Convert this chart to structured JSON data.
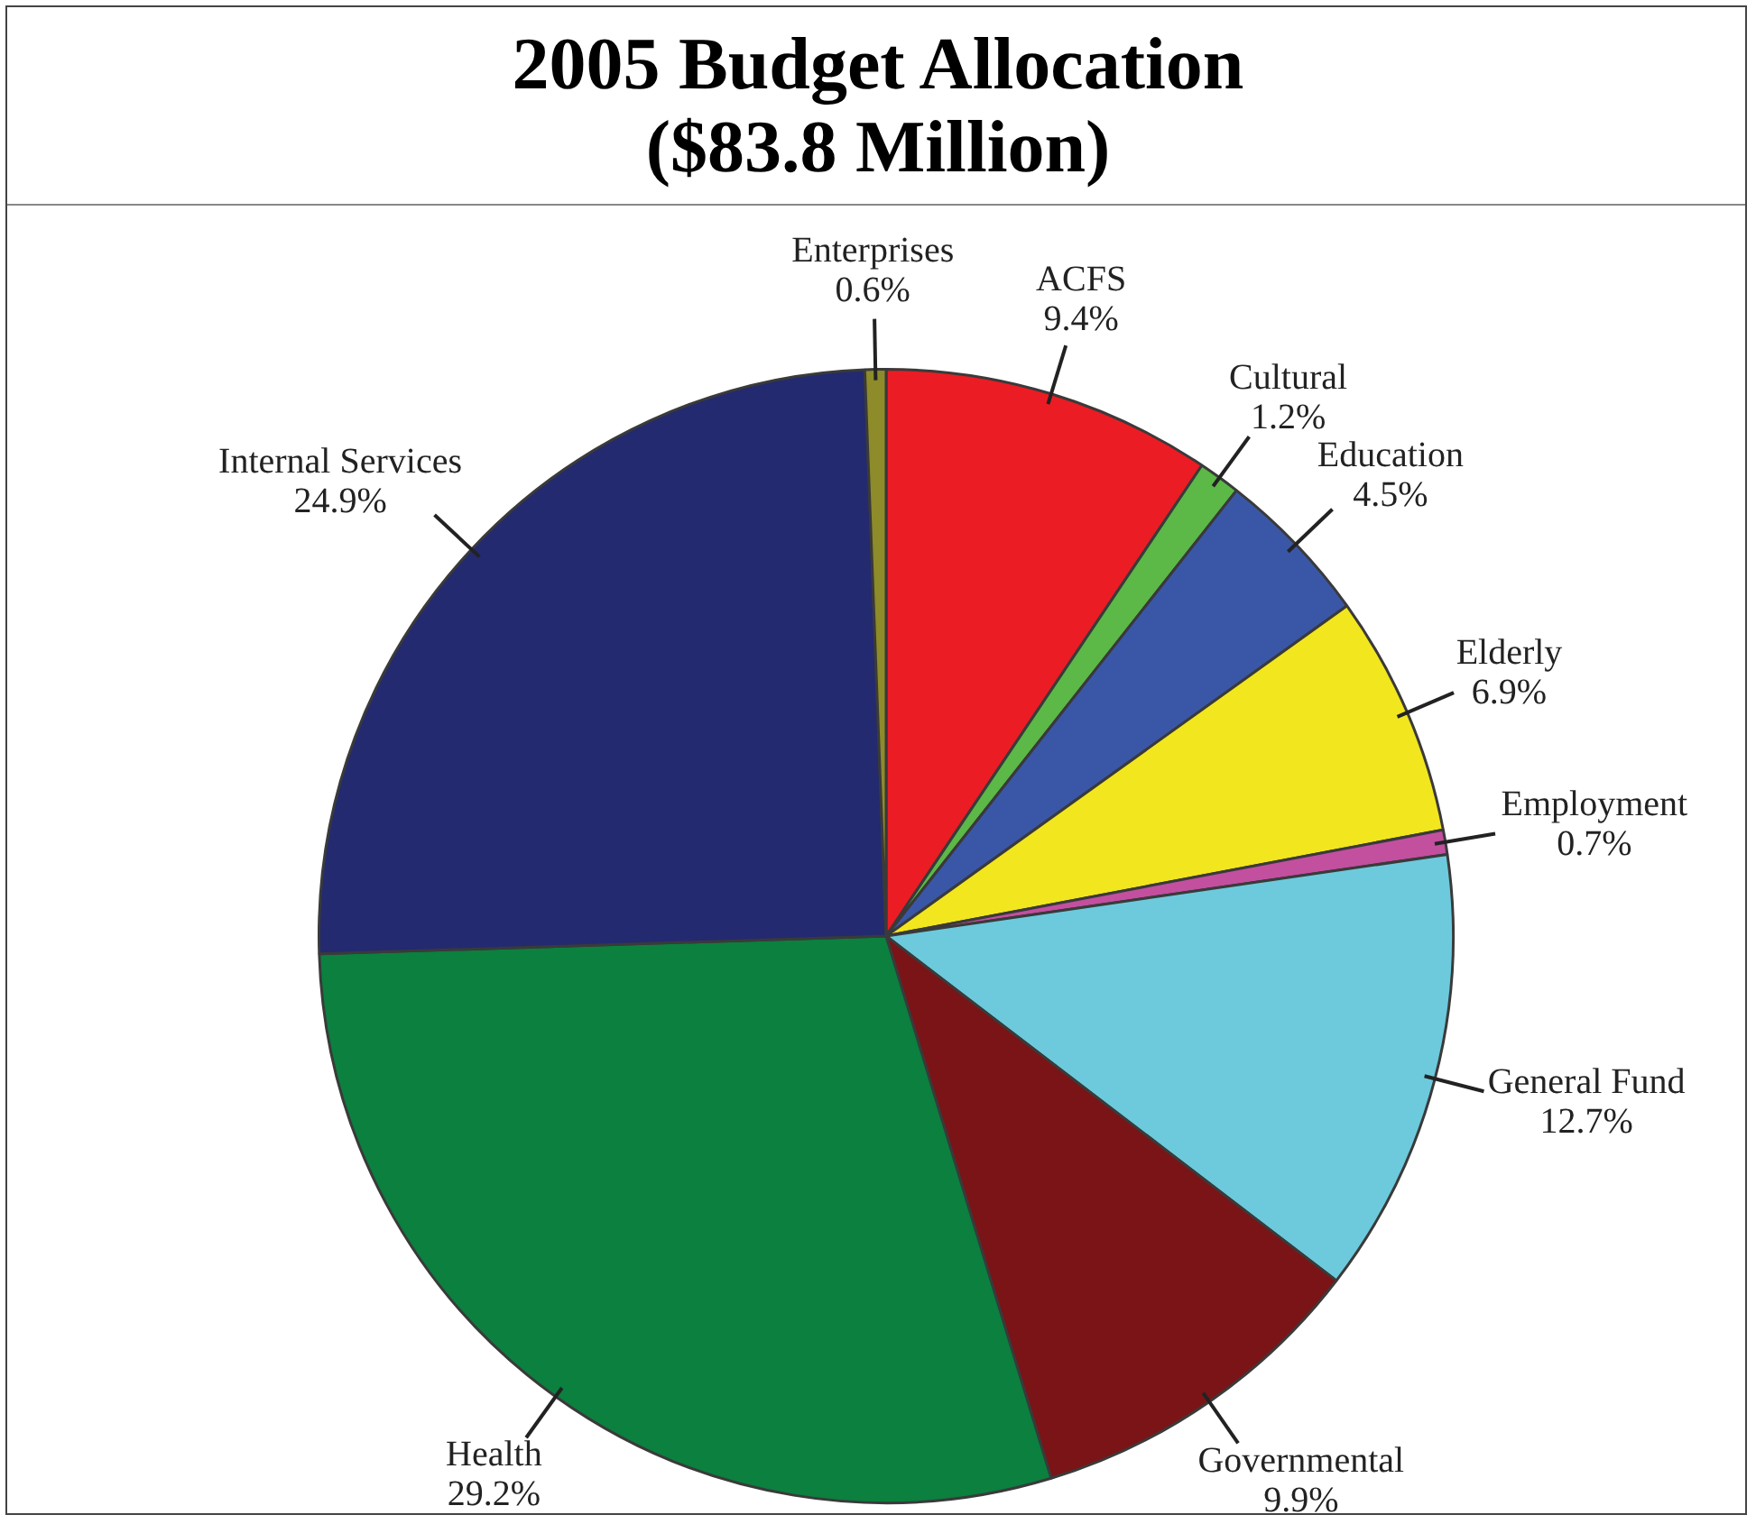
{
  "chart_data": {
    "type": "pie",
    "title": "2005 Budget Allocation\n($83.8 Million)",
    "categories": [
      "ACFS",
      "Cultural",
      "Education",
      "Elderly",
      "Employment",
      "General Fund",
      "Governmental",
      "Health",
      "Internal Services",
      "Enterprises"
    ],
    "values": [
      9.4,
      1.2,
      4.5,
      6.9,
      0.7,
      12.7,
      9.9,
      29.2,
      24.9,
      0.6
    ],
    "value_labels": [
      "9.4%",
      "1.2%",
      "4.5%",
      "6.9%",
      "0.7%",
      "12.7%",
      "9.9%",
      "29.2%",
      "24.9%",
      "0.6%"
    ],
    "colors": [
      "#ec1c24",
      "#5cb847",
      "#3a57a7",
      "#f2e61e",
      "#c34f9f",
      "#6ccadc",
      "#7b1416",
      "#0b803f",
      "#232a6f",
      "#8d8b2a"
    ],
    "legend": false
  }
}
